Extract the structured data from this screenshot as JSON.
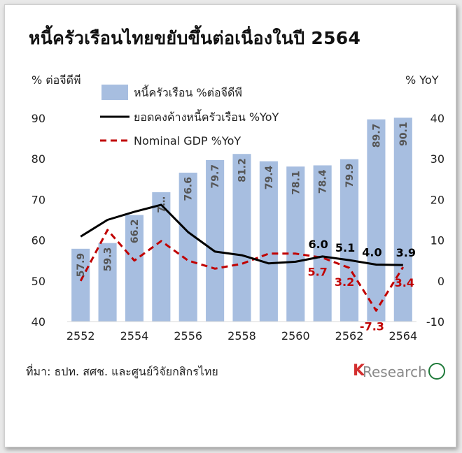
{
  "title": "หนี้ครัวเรือนไทยขยับขึ้นต่อเนื่องในปี 2564",
  "source": "ที่มา: ธปท. สศช. และศูนย์วิจัยกสิกรไทย",
  "logo": {
    "k": "K",
    "rest": "Research"
  },
  "colors": {
    "bars": "#a7bee0",
    "debt_growth": "#000000",
    "gdp": "#c00000"
  },
  "chart_data": {
    "type": "bar",
    "x": [
      2552,
      2553,
      2554,
      2555,
      2556,
      2557,
      2558,
      2559,
      2560,
      2561,
      2562,
      2563,
      2564
    ],
    "x_tick_labels": [
      "2552",
      "2554",
      "2556",
      "2558",
      "2560",
      "2562",
      "2564"
    ],
    "y_left": {
      "label": "% ต่อจีดีพี",
      "range": [
        40,
        90
      ],
      "ticks": [
        "40",
        "50",
        "60",
        "70",
        "80",
        "90"
      ]
    },
    "y_right": {
      "label": "% YoY",
      "range": [
        -10,
        40
      ],
      "ticks": [
        "-10",
        "0",
        "10",
        "20",
        "30",
        "40"
      ]
    },
    "series": [
      {
        "name": "หนี้ครัวเรือน %ต่อจีดีพี",
        "type": "bar",
        "axis": "left",
        "values": [
          57.9,
          59.3,
          66.2,
          71.8,
          76.6,
          79.7,
          81.2,
          79.4,
          78.1,
          78.4,
          79.9,
          89.7,
          90.1
        ],
        "labels": [
          "57.9",
          "59.3",
          "66.2",
          "7…",
          "76.6",
          "79.7",
          "81.2",
          "79.4",
          "78.1",
          "78.4",
          "79.9",
          "89.7",
          "90.1"
        ]
      },
      {
        "name": "ยอดคงค้างหนี้ครัวเรือน %YoY",
        "type": "line",
        "axis": "right",
        "values": [
          10.9,
          15.0,
          17.0,
          18.7,
          12.0,
          7.2,
          6.3,
          4.3,
          4.7,
          6.0,
          5.1,
          4.0,
          3.9
        ],
        "labels": [
          "",
          "",
          "",
          "",
          "",
          "",
          "",
          "",
          "",
          "6.0",
          "5.1",
          "4.0",
          "3.9"
        ]
      },
      {
        "name": "Nominal GDP %YoY",
        "type": "line",
        "dashed": true,
        "axis": "right",
        "values": [
          0.0,
          12.5,
          5.0,
          9.8,
          5.0,
          3.0,
          4.2,
          6.7,
          6.7,
          5.7,
          3.2,
          -7.3,
          3.4
        ],
        "labels": [
          "",
          "",
          "",
          "",
          "",
          "",
          "",
          "",
          "",
          "5.7",
          "3.2",
          "-7.3",
          "3.4"
        ]
      }
    ],
    "legend_position": "top-left",
    "grid": false
  }
}
